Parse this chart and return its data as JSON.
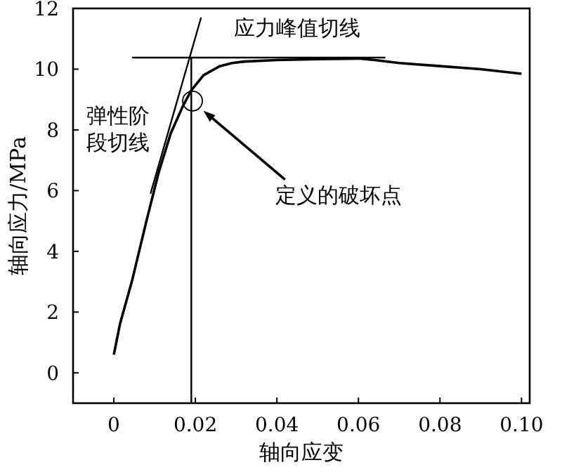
{
  "chart_data": {
    "type": "line",
    "xlabel": "轴向应变",
    "ylabel": "轴向应力/MPa",
    "xlim": [
      -0.01,
      0.102
    ],
    "ylim": [
      -1,
      12
    ],
    "xticks": [
      0,
      0.02,
      0.04,
      0.06,
      {
        "value": 0.08,
        "label": "0.08"
      },
      {
        "value": 0.1,
        "label": "0.10"
      }
    ],
    "yticks": [
      0,
      2,
      4,
      6,
      8,
      10,
      12
    ],
    "line_style": "solid",
    "series": [
      {
        "color": "#000000",
        "x": [
          0,
          0.0015,
          0.0045,
          0.008,
          0.011,
          0.014,
          0.017,
          0.019,
          0.0205,
          0.022,
          0.024,
          0.026,
          0.029,
          0.032,
          0.04,
          0.05,
          0.06,
          0.064,
          0.07,
          0.08,
          0.09,
          0.1
        ],
        "values": [
          0.6,
          1.6,
          3.05,
          5.0,
          6.6,
          7.9,
          8.8,
          9.3,
          9.55,
          9.8,
          9.95,
          10.1,
          10.2,
          10.25,
          10.3,
          10.33,
          10.35,
          10.3,
          10.2,
          10.1,
          10.0,
          9.85
        ]
      },
      {
        "color": "#000000",
        "x": [
          0.009,
          0.0214
        ],
        "values": [
          5.9,
          11.7
        ]
      },
      {
        "color": "#000000",
        "x": [
          0.0045,
          0.0666
        ],
        "values": [
          10.38,
          10.38
        ]
      },
      {
        "type": "scatter",
        "marker": "circle",
        "color": "#000000",
        "x": [
          0.0193
        ],
        "values": [
          8.95
        ]
      }
    ],
    "ref_lines": [
      {
        "axis": "x",
        "value": 0.019
      }
    ],
    "annotations": [
      {
        "text": "应力峰值切线",
        "x": 0.045,
        "y": 10.38
      },
      {
        "text": "弹性阶段切线",
        "x": 0.012,
        "y": 7.3
      },
      {
        "text": "定义的破坏点",
        "x": 0.022,
        "y": 8.63
      }
    ]
  }
}
